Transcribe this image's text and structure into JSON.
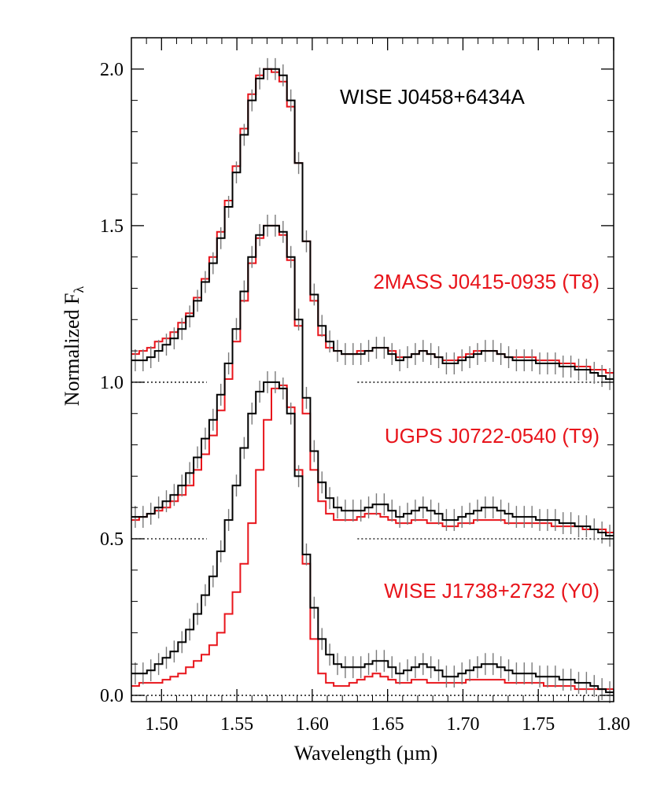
{
  "chart_data": {
    "type": "line",
    "title": "",
    "xlabel": "Wavelength (µm)",
    "ylabel_main": "Normalized F",
    "ylabel_sub": "λ",
    "xlim": [
      1.48,
      1.8
    ],
    "ylim": [
      -0.02,
      2.1
    ],
    "xticks": [
      1.5,
      1.55,
      1.6,
      1.65,
      1.7,
      1.75,
      1.8
    ],
    "xtick_labels": [
      "1.50",
      "1.55",
      "1.60",
      "1.65",
      "1.70",
      "1.75",
      "1.80"
    ],
    "yticks": [
      0.0,
      0.5,
      1.0,
      1.5,
      2.0
    ],
    "ytick_labels": [
      "0.0",
      "0.5",
      "1.0",
      "1.5",
      "2.0"
    ],
    "colors": {
      "target": "#000000",
      "comparison": "#e8141b",
      "error": "#7a7a7a"
    },
    "target_name": "WISE J0458+6434A",
    "panels": [
      {
        "offset": 1.0,
        "comparison_label": "2MASS J0415-0935 (T8)",
        "target_y": [
          0.07,
          0.07,
          0.08,
          0.1,
          0.12,
          0.14,
          0.17,
          0.21,
          0.26,
          0.32,
          0.38,
          0.46,
          0.56,
          0.67,
          0.79,
          0.9,
          0.97,
          1.0,
          1.0,
          0.98,
          0.9,
          0.7,
          0.45,
          0.28,
          0.18,
          0.13,
          0.1,
          0.09,
          0.09,
          0.09,
          0.1,
          0.11,
          0.11,
          0.09,
          0.07,
          0.08,
          0.09,
          0.1,
          0.09,
          0.08,
          0.06,
          0.06,
          0.07,
          0.08,
          0.09,
          0.1,
          0.1,
          0.09,
          0.08,
          0.07,
          0.07,
          0.07,
          0.06,
          0.06,
          0.06,
          0.05,
          0.05,
          0.04,
          0.04,
          0.03,
          0.02,
          0.01
        ],
        "comparison_y": [
          0.09,
          0.1,
          0.11,
          0.13,
          0.14,
          0.16,
          0.19,
          0.22,
          0.27,
          0.33,
          0.4,
          0.48,
          0.58,
          0.69,
          0.81,
          0.92,
          0.98,
          1.0,
          0.99,
          0.96,
          0.88,
          0.7,
          0.45,
          0.26,
          0.15,
          0.11,
          0.1,
          0.09,
          0.09,
          0.1,
          0.1,
          0.11,
          0.11,
          0.1,
          0.08,
          0.08,
          0.09,
          0.1,
          0.09,
          0.08,
          0.07,
          0.07,
          0.08,
          0.09,
          0.1,
          0.1,
          0.1,
          0.09,
          0.08,
          0.08,
          0.08,
          0.08,
          0.07,
          0.07,
          0.07,
          0.06,
          0.06,
          0.05,
          0.05,
          0.04,
          0.04,
          0.03
        ]
      },
      {
        "offset": 0.5,
        "comparison_label": "UGPS J0722-0540 (T9)",
        "target_y": [
          0.07,
          0.07,
          0.08,
          0.1,
          0.12,
          0.14,
          0.17,
          0.21,
          0.26,
          0.32,
          0.38,
          0.46,
          0.56,
          0.67,
          0.79,
          0.9,
          0.97,
          1.0,
          1.0,
          0.98,
          0.9,
          0.7,
          0.45,
          0.28,
          0.18,
          0.13,
          0.1,
          0.09,
          0.09,
          0.09,
          0.1,
          0.11,
          0.11,
          0.09,
          0.07,
          0.08,
          0.09,
          0.1,
          0.09,
          0.08,
          0.06,
          0.06,
          0.07,
          0.08,
          0.09,
          0.1,
          0.1,
          0.09,
          0.08,
          0.07,
          0.07,
          0.07,
          0.06,
          0.06,
          0.06,
          0.05,
          0.05,
          0.04,
          0.04,
          0.03,
          0.02,
          0.01
        ],
        "comparison_y": [
          0.06,
          0.07,
          0.08,
          0.09,
          0.1,
          0.12,
          0.14,
          0.17,
          0.22,
          0.27,
          0.33,
          0.41,
          0.51,
          0.63,
          0.76,
          0.88,
          0.96,
          1.0,
          1.0,
          0.97,
          0.89,
          0.68,
          0.4,
          0.22,
          0.12,
          0.08,
          0.06,
          0.06,
          0.06,
          0.07,
          0.08,
          0.08,
          0.07,
          0.06,
          0.05,
          0.05,
          0.06,
          0.06,
          0.05,
          0.05,
          0.04,
          0.04,
          0.05,
          0.05,
          0.06,
          0.06,
          0.06,
          0.06,
          0.05,
          0.05,
          0.05,
          0.05,
          0.05,
          0.05,
          0.04,
          0.04,
          0.04,
          0.04,
          0.03,
          0.03,
          0.03,
          0.02
        ]
      },
      {
        "offset": 0.0,
        "comparison_label": "WISE J1738+2732 (Y0)",
        "target_y": [
          0.07,
          0.07,
          0.08,
          0.1,
          0.12,
          0.14,
          0.17,
          0.21,
          0.26,
          0.32,
          0.38,
          0.46,
          0.56,
          0.67,
          0.79,
          0.9,
          0.97,
          1.0,
          1.0,
          0.98,
          0.9,
          0.7,
          0.45,
          0.28,
          0.18,
          0.13,
          0.1,
          0.09,
          0.09,
          0.09,
          0.1,
          0.11,
          0.11,
          0.09,
          0.07,
          0.08,
          0.09,
          0.1,
          0.09,
          0.08,
          0.06,
          0.06,
          0.07,
          0.08,
          0.09,
          0.1,
          0.1,
          0.09,
          0.08,
          0.07,
          0.07,
          0.07,
          0.06,
          0.06,
          0.06,
          0.05,
          0.05,
          0.04,
          0.04,
          0.03,
          0.02,
          0.01
        ],
        "comparison_y": [
          0.03,
          0.04,
          0.04,
          0.04,
          0.05,
          0.06,
          0.07,
          0.09,
          0.11,
          0.13,
          0.16,
          0.2,
          0.26,
          0.33,
          0.42,
          0.55,
          0.72,
          0.88,
          0.98,
          0.99,
          0.92,
          0.72,
          0.42,
          0.18,
          0.07,
          0.04,
          0.03,
          0.03,
          0.04,
          0.05,
          0.06,
          0.07,
          0.06,
          0.05,
          0.04,
          0.04,
          0.05,
          0.05,
          0.04,
          0.04,
          0.04,
          0.04,
          0.04,
          0.05,
          0.05,
          0.05,
          0.05,
          0.05,
          0.04,
          0.04,
          0.04,
          0.04,
          0.04,
          0.03,
          0.03,
          0.03,
          0.03,
          0.02,
          0.02,
          0.02,
          0.02,
          0.02
        ]
      }
    ],
    "error_bar": 0.035,
    "zero_lines": [
      {
        "y": 1.0,
        "segments": [
          [
            1.48,
            1.53
          ],
          [
            1.63,
            1.8
          ]
        ]
      },
      {
        "y": 0.5,
        "segments": [
          [
            1.48,
            1.53
          ],
          [
            1.63,
            1.8
          ]
        ]
      },
      {
        "y": 0.0,
        "segments": [
          [
            1.48,
            1.8
          ]
        ]
      }
    ]
  }
}
